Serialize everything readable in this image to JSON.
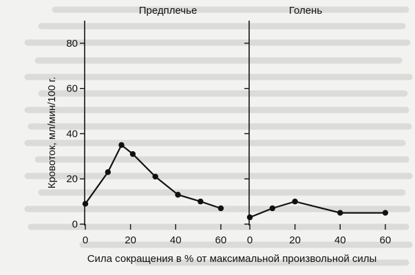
{
  "chart_data": {
    "type": "line",
    "ylabel": "Кровоток, мл/мин/100 г.",
    "xlabel": "Сила сокращения в % от максимальной произвольной силы",
    "ylim": [
      0,
      90
    ],
    "yticks": [
      0,
      20,
      40,
      60,
      80
    ],
    "xlim": [
      0,
      64
    ],
    "xticks": [
      0,
      20,
      40,
      60
    ],
    "grid": false,
    "panels": [
      {
        "title": "Предплечье",
        "series": [
          {
            "x": [
              0,
              10,
              16,
              21,
              31,
              41,
              51,
              60
            ],
            "y": [
              9,
              23,
              35,
              31,
              21,
              13,
              10,
              7
            ]
          }
        ]
      },
      {
        "title": "Голень",
        "series": [
          {
            "x": [
              0,
              10,
              20,
              40,
              60
            ],
            "y": [
              3,
              7,
              10,
              5,
              5
            ]
          }
        ]
      }
    ]
  }
}
